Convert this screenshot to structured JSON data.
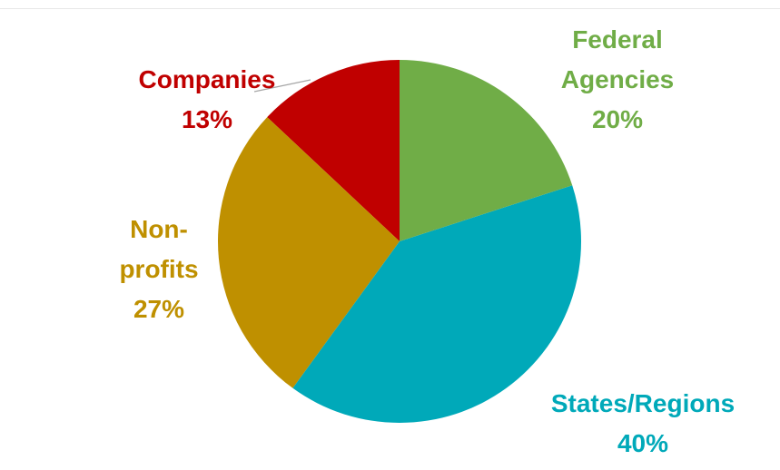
{
  "chart_data": {
    "type": "pie",
    "categories": [
      "Federal Agencies",
      "States/Regions",
      "Non-profits",
      "Companies"
    ],
    "values": [
      20,
      40,
      27,
      13
    ],
    "value_labels": [
      "20%",
      "40%",
      "27%",
      "13%"
    ],
    "colors": [
      "#70ad47",
      "#00a9b9",
      "#bf9000",
      "#c00000"
    ],
    "start_angle": 90,
    "direction": "clockwise"
  }
}
